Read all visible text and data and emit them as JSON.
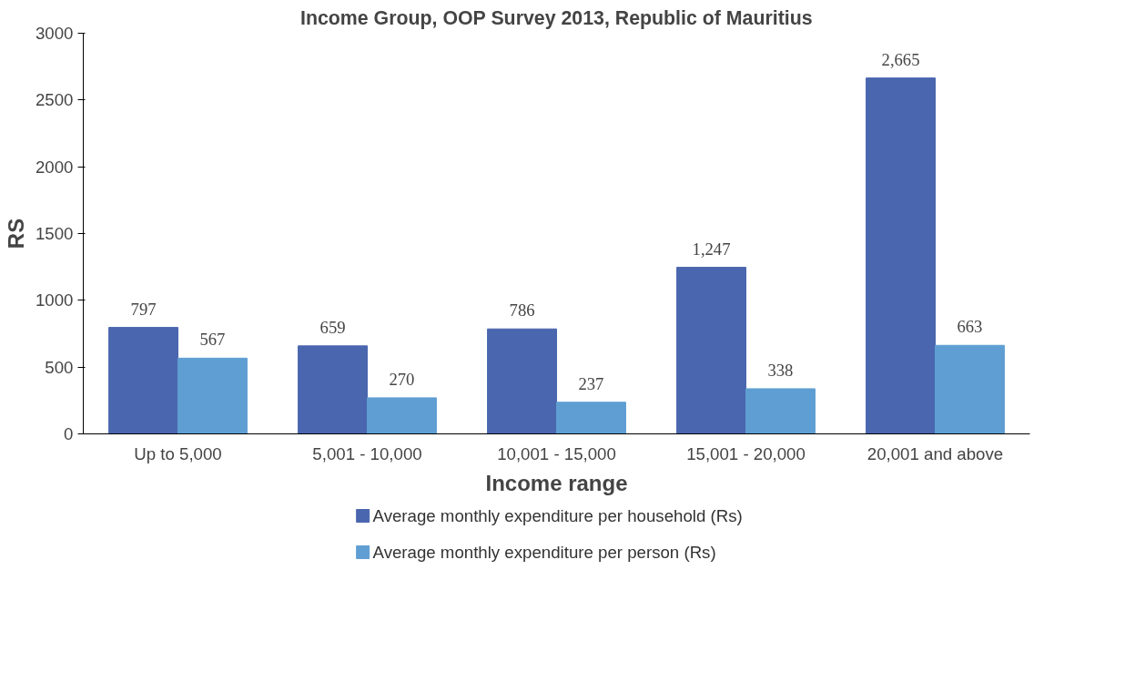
{
  "chart_data": {
    "type": "bar",
    "title": "Income Group, OOP Survey 2013, Republic of Mauritius",
    "xlabel": "Income range",
    "ylabel": "RS",
    "categories": [
      "Up to 5,000",
      "5,001 - 10,000",
      "10,001 - 15,000",
      "15,001 - 20,000",
      "20,001 and above"
    ],
    "series": [
      {
        "name": "Average monthly expenditure per household (Rs)",
        "color": "#4a66ae",
        "values": [
          797,
          659,
          786,
          1247,
          2665
        ],
        "value_labels": [
          "797",
          "659",
          "786",
          "1,247",
          "2,665"
        ]
      },
      {
        "name": "Average monthly expenditure per person (Rs)",
        "color": "#5f9ed3",
        "values": [
          567,
          270,
          237,
          338,
          663
        ]
      }
    ],
    "ylim": [
      0,
      3000
    ],
    "yticks": [
      0,
      500,
      1000,
      1500,
      2000,
      2500,
      3000
    ],
    "grid": false,
    "legend": "bottom",
    "data_labels": true
  }
}
